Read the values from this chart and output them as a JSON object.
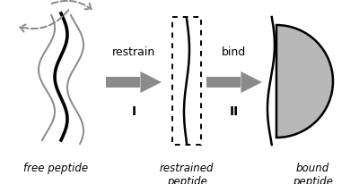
{
  "background_color": "#ffffff",
  "arrow_facecolor": "#8a8a8a",
  "curve_color_black": "#000000",
  "curve_color_gray": "#888888",
  "dashed_arrow_color": "#888888",
  "text_color": "#000000",
  "label1": "free peptide",
  "label2": "restrained\npeptide",
  "label3": "bound\npeptide",
  "arrow1_label": "restrain",
  "arrow2_label": "bind",
  "arrow1_sublabel": "I",
  "arrow2_sublabel": "II",
  "halfcircle_color": "#b8b8b8",
  "fig_width": 4.0,
  "fig_height": 2.07,
  "dpi": 100
}
